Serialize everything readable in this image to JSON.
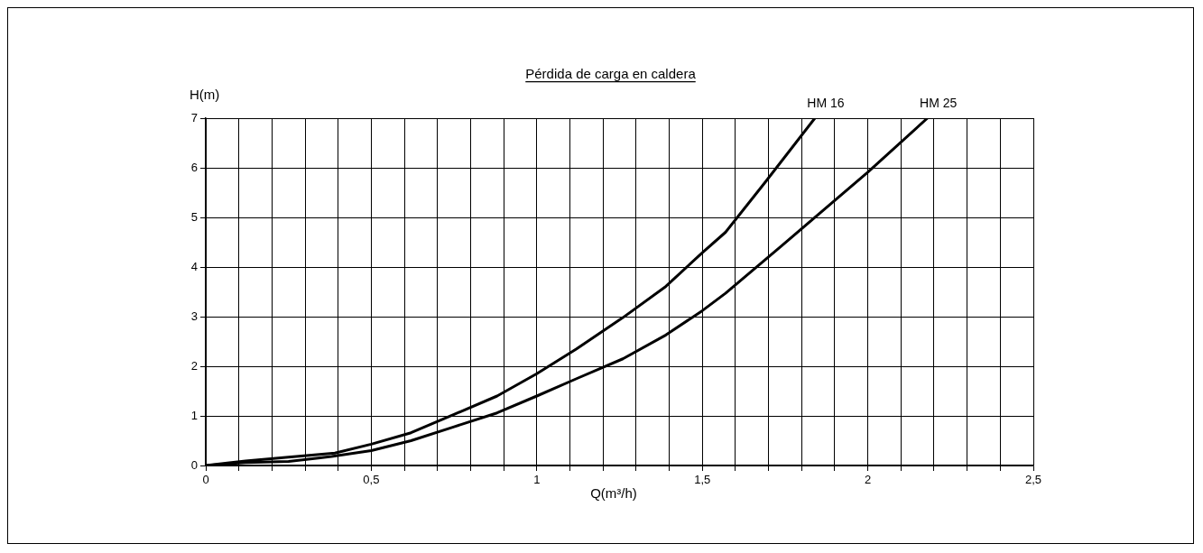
{
  "chart_data": {
    "type": "line",
    "title": "Pérdida de carga en caldera",
    "xlabel": "Q(m³/h)",
    "ylabel": "H(m)",
    "xlim": [
      0,
      2.5
    ],
    "ylim": [
      0,
      7
    ],
    "xticks": [
      0,
      {
        "value": 0.1,
        "label": null
      },
      {
        "value": 0.2,
        "label": null
      },
      {
        "value": 0.3,
        "label": null
      },
      {
        "value": 0.4,
        "label": null
      },
      {
        "value": 0.5,
        "label": "0,5"
      },
      {
        "value": 0.6,
        "label": null
      },
      {
        "value": 0.7,
        "label": null
      },
      {
        "value": 0.8,
        "label": null
      },
      {
        "value": 0.9,
        "label": null
      },
      1,
      {
        "value": 1.1,
        "label": null
      },
      {
        "value": 1.2,
        "label": null
      },
      {
        "value": 1.3,
        "label": null
      },
      {
        "value": 1.4,
        "label": null
      },
      {
        "value": 1.5,
        "label": "1,5"
      },
      {
        "value": 1.6,
        "label": null
      },
      {
        "value": 1.7,
        "label": null
      },
      {
        "value": 1.8,
        "label": null
      },
      {
        "value": 1.9,
        "label": null
      },
      2,
      {
        "value": 2.1,
        "label": null
      },
      {
        "value": 2.2,
        "label": null
      },
      {
        "value": 2.3,
        "label": null
      },
      {
        "value": 2.4,
        "label": null
      },
      {
        "value": 2.5,
        "label": "2,5"
      }
    ],
    "yticks": [
      0,
      1,
      2,
      3,
      4,
      5,
      6,
      7
    ],
    "grid": true,
    "legend": false,
    "marker": "none",
    "line_style": "solid",
    "series": [
      {
        "name": "HM 16",
        "color": "#000000",
        "x": [
          0,
          0.12,
          0.25,
          0.39,
          0.5,
          0.62,
          0.75,
          0.88,
          1.0,
          1.12,
          1.26,
          1.39,
          1.5,
          1.57,
          1.69,
          1.84
        ],
        "values": [
          0,
          0.09,
          0.17,
          0.25,
          0.43,
          0.66,
          1.03,
          1.4,
          1.85,
          2.35,
          2.98,
          3.61,
          4.29,
          4.7,
          5.71,
          7.0
        ]
      },
      {
        "name": "HM 25",
        "color": "#000000",
        "x": [
          0,
          0.12,
          0.25,
          0.38,
          0.5,
          0.62,
          0.75,
          0.88,
          1.0,
          1.12,
          1.26,
          1.39,
          1.5,
          1.57,
          1.74,
          2.0,
          2.18
        ],
        "values": [
          0,
          0.06,
          0.08,
          0.18,
          0.3,
          0.5,
          0.78,
          1.06,
          1.4,
          1.75,
          2.15,
          2.63,
          3.12,
          3.47,
          4.43,
          5.91,
          7.0
        ]
      }
    ]
  }
}
